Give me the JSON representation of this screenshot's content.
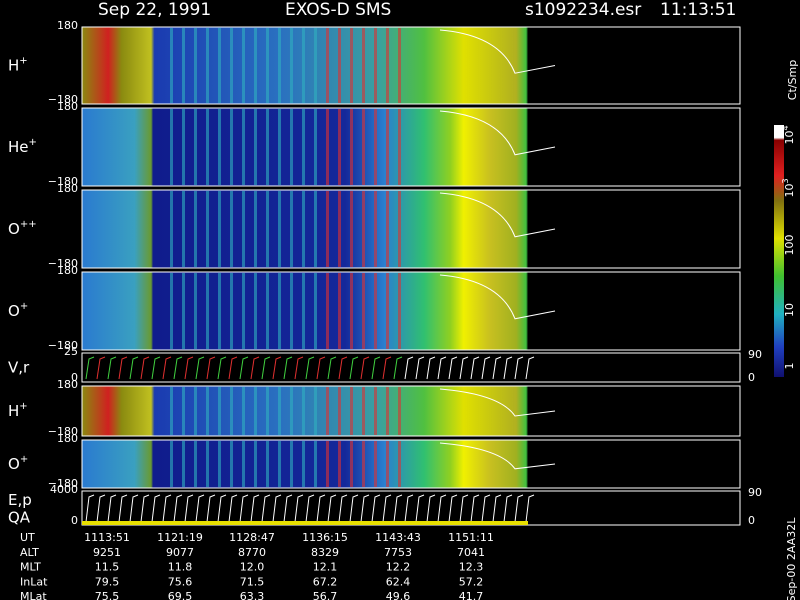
{
  "header": {
    "date": "Sep 22, 1991",
    "instrument": "EXOS-D SMS",
    "file": "s1092234.esr",
    "time": "11:13:51"
  },
  "panels": [
    {
      "species": "H",
      "charge": "+",
      "ticks": [
        "180",
        "−180"
      ]
    },
    {
      "species": "He",
      "charge": "+",
      "ticks": [
        "180",
        "−180"
      ]
    },
    {
      "species": "O",
      "charge": "++",
      "ticks": [
        "180",
        "−180"
      ]
    },
    {
      "species": "O",
      "charge": "+",
      "ticks": [
        "180",
        "−180"
      ]
    },
    {
      "species": "V,r",
      "ticks": [
        "25",
        "0"
      ],
      "right_ticks": [
        "90",
        "0"
      ]
    },
    {
      "species": "H",
      "charge": "+",
      "ticks": [
        "180",
        "−180"
      ]
    },
    {
      "species": "O",
      "charge": "+",
      "ticks": [
        "180",
        "−180"
      ]
    },
    {
      "species": "E,p",
      "species2": "QA",
      "ticks": [
        "4000",
        "0"
      ],
      "right_ticks": [
        "90",
        "0"
      ]
    }
  ],
  "colorbar": {
    "label": "Ct/Smp",
    "ticks": [
      {
        "base": "10",
        "exp": "4"
      },
      {
        "base": "10",
        "exp": "3"
      },
      "100",
      "10",
      "1"
    ]
  },
  "table": {
    "rows": [
      [
        "UT",
        "1113:51",
        "1121:19",
        "1128:47",
        "1136:15",
        "1143:43",
        "1151:11"
      ],
      [
        "ALT",
        "9251",
        "9077",
        "8770",
        "8329",
        "7753",
        "7041"
      ],
      [
        "MLT",
        "11.5",
        "11.8",
        "12.0",
        "12.1",
        "12.2",
        "12.3"
      ],
      [
        "InLat",
        "79.5",
        "75.6",
        "71.5",
        "67.2",
        "62.4",
        "57.2"
      ],
      [
        "MLat",
        "75.5",
        "69.5",
        "63.3",
        "56.7",
        "49.6",
        "41.7"
      ]
    ]
  },
  "footer": "Sep-00 2AA32L"
}
